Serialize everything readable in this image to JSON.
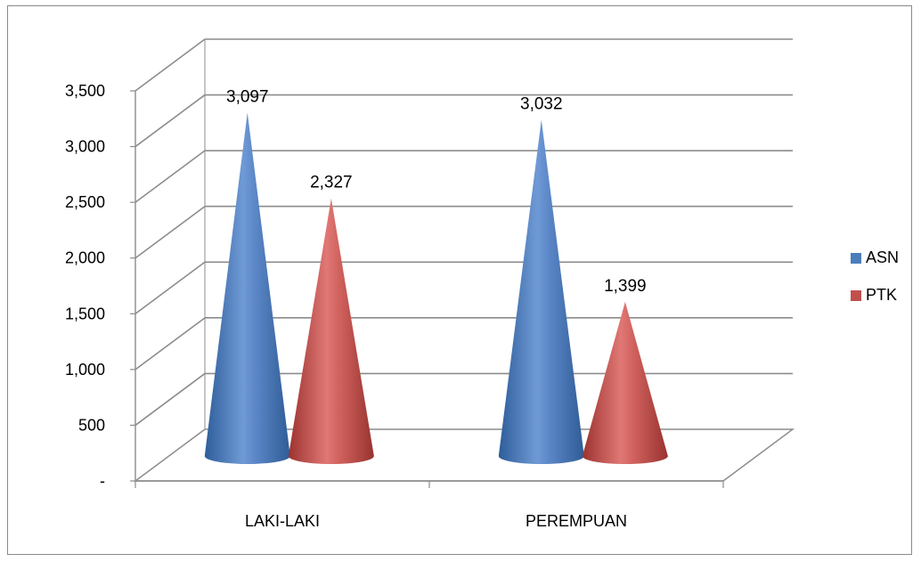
{
  "chart_data": {
    "type": "bar",
    "style": "3d-cone",
    "categories": [
      "LAKI-LAKI",
      "PEREMPUAN"
    ],
    "series": [
      {
        "name": "ASN",
        "values": [
          3097,
          3032
        ],
        "color": "#4a7ebb",
        "labels": [
          "3,097",
          "3,032"
        ]
      },
      {
        "name": "PTK",
        "values": [
          2327,
          1399
        ],
        "color": "#c0504d",
        "labels": [
          "2,327",
          "1,399"
        ]
      }
    ],
    "yticks": [
      "-",
      "500",
      "1,000",
      "1,500",
      "2,000",
      "2,500",
      "3,000",
      "3,500"
    ],
    "ylim": [
      0,
      3500
    ],
    "grid": true,
    "legend": "right"
  }
}
